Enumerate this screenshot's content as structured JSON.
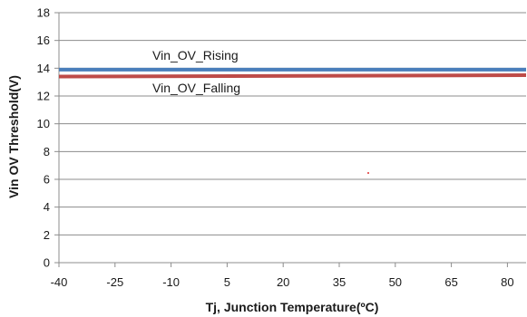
{
  "chart_data": {
    "type": "line",
    "title": "",
    "xlabel": "Tj, Junction Temperature(ºC)",
    "ylabel": "Vin  OV Threshold(V)",
    "xlim": [
      -40,
      85
    ],
    "ylim": [
      0,
      18
    ],
    "x_ticks": [
      -40,
      -25,
      -10,
      5,
      20,
      35,
      50,
      65,
      80
    ],
    "y_ticks": [
      0,
      2,
      4,
      6,
      8,
      10,
      12,
      14,
      16,
      18
    ],
    "grid": true,
    "legend": "inline",
    "series": [
      {
        "name": "Vin_OV_Rising",
        "color": "#4a7ebb",
        "x": [
          -40,
          85
        ],
        "y": [
          13.9,
          13.9
        ]
      },
      {
        "name": "Vin_OV_Falling",
        "color": "#be4b48",
        "x": [
          -40,
          85
        ],
        "y": [
          13.4,
          13.5
        ]
      }
    ]
  }
}
